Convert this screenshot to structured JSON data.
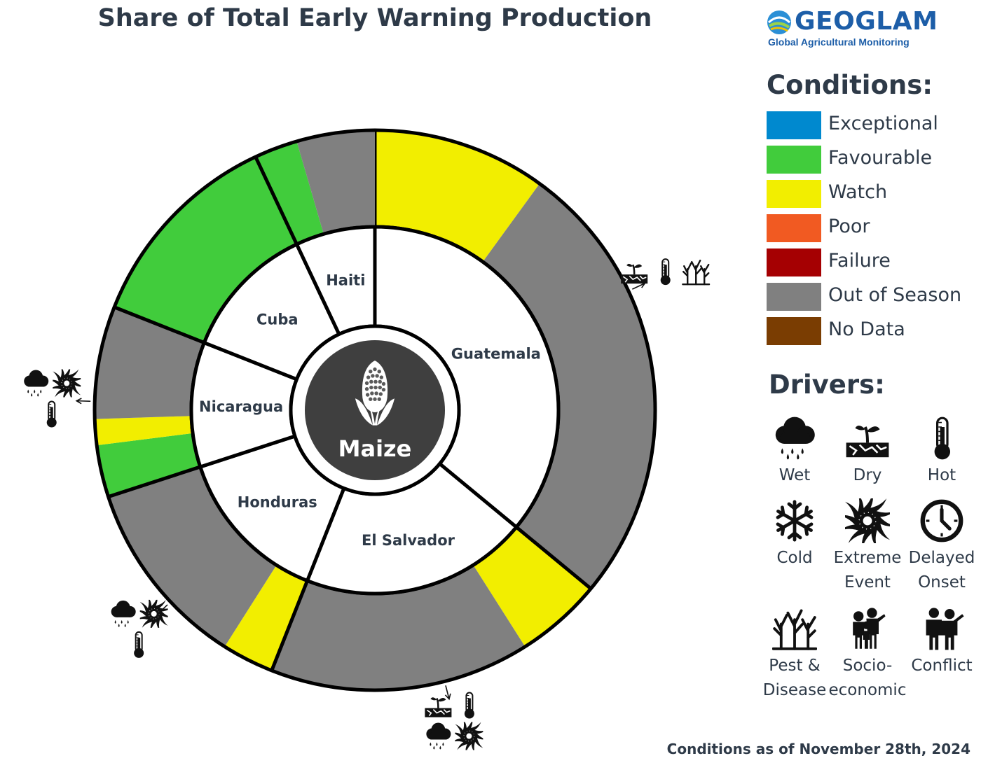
{
  "title": "Share of Total Early Warning Production",
  "logo": {
    "name": "GEOGLAM",
    "subtitle": "Global Agricultural Monitoring"
  },
  "chart_data": {
    "type": "nested-donut",
    "title": "Share of Total Early Warning Production",
    "center_label": "Maize",
    "countries": [
      {
        "name": "Guatemala",
        "share": 36,
        "segments": [
          {
            "condition": "Watch",
            "value": 10
          },
          {
            "condition": "Out of Season",
            "value": 26
          }
        ],
        "drivers": [
          "Dry",
          "Hot",
          "Pest & Disease"
        ]
      },
      {
        "name": "El Salvador",
        "share": 20,
        "segments": [
          {
            "condition": "Watch",
            "value": 5
          },
          {
            "condition": "Out of Season",
            "value": 15
          }
        ],
        "drivers": [
          "Dry",
          "Hot",
          "Wet",
          "Extreme Event"
        ]
      },
      {
        "name": "Honduras",
        "share": 14,
        "segments": [
          {
            "condition": "Watch",
            "value": 3
          },
          {
            "condition": "Out of Season",
            "value": 11
          }
        ],
        "drivers": [
          "Wet",
          "Extreme Event",
          "Hot"
        ]
      },
      {
        "name": "Nicaragua",
        "share": 11,
        "segments": [
          {
            "condition": "Favourable",
            "value": 3
          },
          {
            "condition": "Watch",
            "value": 1.5
          },
          {
            "condition": "Out of Season",
            "value": 6.5
          }
        ],
        "drivers": [
          "Wet",
          "Extreme Event",
          "Hot"
        ]
      },
      {
        "name": "Cuba",
        "share": 12,
        "segments": [
          {
            "condition": "Favourable",
            "value": 12
          }
        ],
        "drivers": []
      },
      {
        "name": "Haiti",
        "share": 7,
        "segments": [
          {
            "condition": "Favourable",
            "value": 2.5
          },
          {
            "condition": "Out of Season",
            "value": 4.5
          }
        ],
        "drivers": []
      }
    ],
    "conditions": [
      {
        "label": "Exceptional",
        "color": "#0089cf"
      },
      {
        "label": "Favourable",
        "color": "#41cc3c"
      },
      {
        "label": "Watch",
        "color": "#f2ee00"
      },
      {
        "label": "Poor",
        "color": "#f15a22"
      },
      {
        "label": "Failure",
        "color": "#a50002"
      },
      {
        "label": "Out of Season",
        "color": "#808080"
      },
      {
        "label": "No Data",
        "color": "#7a3d02"
      }
    ]
  },
  "legend": {
    "conditions_heading": "Conditions:",
    "drivers_heading": "Drivers:",
    "drivers": [
      {
        "label": "Wet",
        "icon": "wet-icon"
      },
      {
        "label": "Dry",
        "icon": "dry-icon"
      },
      {
        "label": "Hot",
        "icon": "hot-icon"
      },
      {
        "label": "Cold",
        "icon": "cold-icon"
      },
      {
        "label": "Extreme\nEvent",
        "icon": "extreme-event-icon"
      },
      {
        "label": "Delayed\nOnset",
        "icon": "delayed-onset-icon"
      },
      {
        "label": "Pest &\nDisease",
        "icon": "pest-disease-icon"
      },
      {
        "label": "Socio-\neconomic",
        "icon": "socio-economic-icon"
      },
      {
        "label": "Conflict",
        "icon": "conflict-icon"
      }
    ]
  },
  "footer": "Conditions as of November 28th, 2024"
}
